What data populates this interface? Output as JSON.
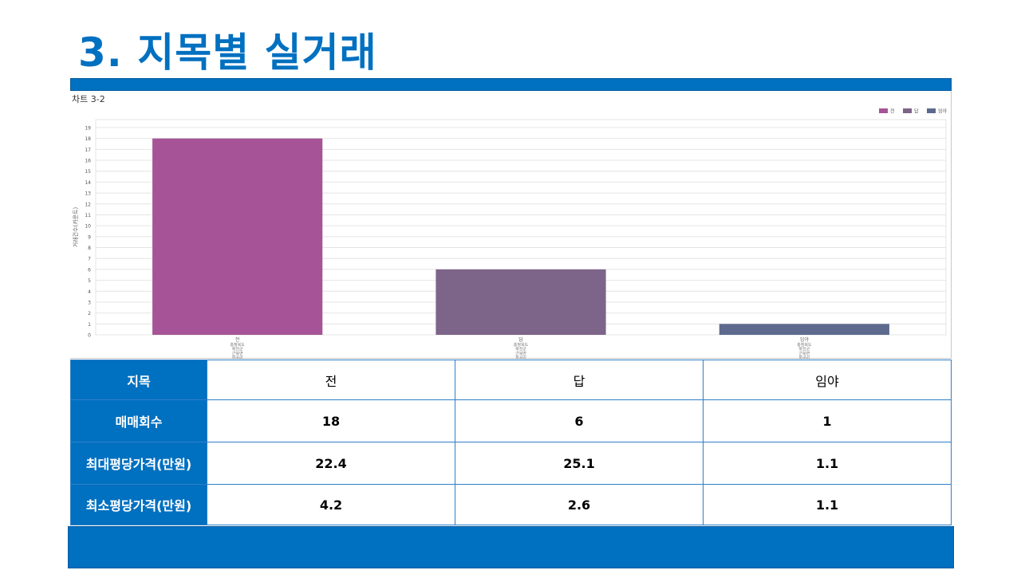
{
  "page": {
    "title": "3. 지목별 실거래"
  },
  "chart": {
    "caption": "차트 3-2"
  },
  "chart_data": {
    "type": "bar",
    "categories": [
      "전",
      "답",
      "임야"
    ],
    "category_sublabels": [
      "충청북도\n옥천군\n군북면\n항곡리",
      "충청북도\n옥천군\n군북면\n항곡리",
      "충청북도\n옥천군\n군북면\n항곡리"
    ],
    "values": [
      18,
      6,
      1
    ],
    "colors": [
      "#a65497",
      "#7d6489",
      "#5d6a8e"
    ],
    "legend": [
      "전",
      "답",
      "임야"
    ],
    "legend_position": "top-right",
    "ylabel": "거래건수(카운트)",
    "ylim": [
      0,
      19
    ],
    "yticks": [
      0,
      1,
      2,
      3,
      4,
      5,
      6,
      7,
      8,
      9,
      10,
      11,
      12,
      13,
      14,
      15,
      16,
      17,
      18,
      19
    ],
    "grid": true
  },
  "table": {
    "rows": [
      {
        "label": "지목",
        "values": [
          "전",
          "답",
          "임야"
        ]
      },
      {
        "label": "매매회수",
        "values": [
          "18",
          "6",
          "1"
        ]
      },
      {
        "label": "최대평당가격(만원)",
        "values": [
          "22.4",
          "25.1",
          "1.1"
        ]
      },
      {
        "label": "최소평당가격(만원)",
        "values": [
          "4.2",
          "2.6",
          "1.1"
        ]
      }
    ]
  }
}
